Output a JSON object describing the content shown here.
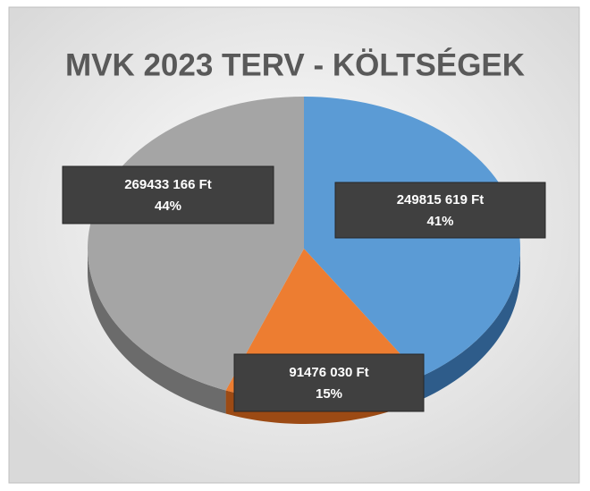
{
  "chart_data": {
    "type": "pie",
    "title": "MVK 2023 TERV - KÖLTSÉGEK",
    "values": [
      249815619,
      91476030,
      269433166
    ],
    "value_labels": [
      "249815 619 Ft",
      "91476 030 Ft",
      "269433 166 Ft"
    ],
    "percent_labels": [
      "41%",
      "15%",
      "44%"
    ],
    "colors": [
      "#5b9bd5",
      "#ed7d31",
      "#a5a5a5"
    ],
    "side_colors": [
      "#2e5c8a",
      "#9c4a14",
      "#6b6b6b"
    ]
  }
}
